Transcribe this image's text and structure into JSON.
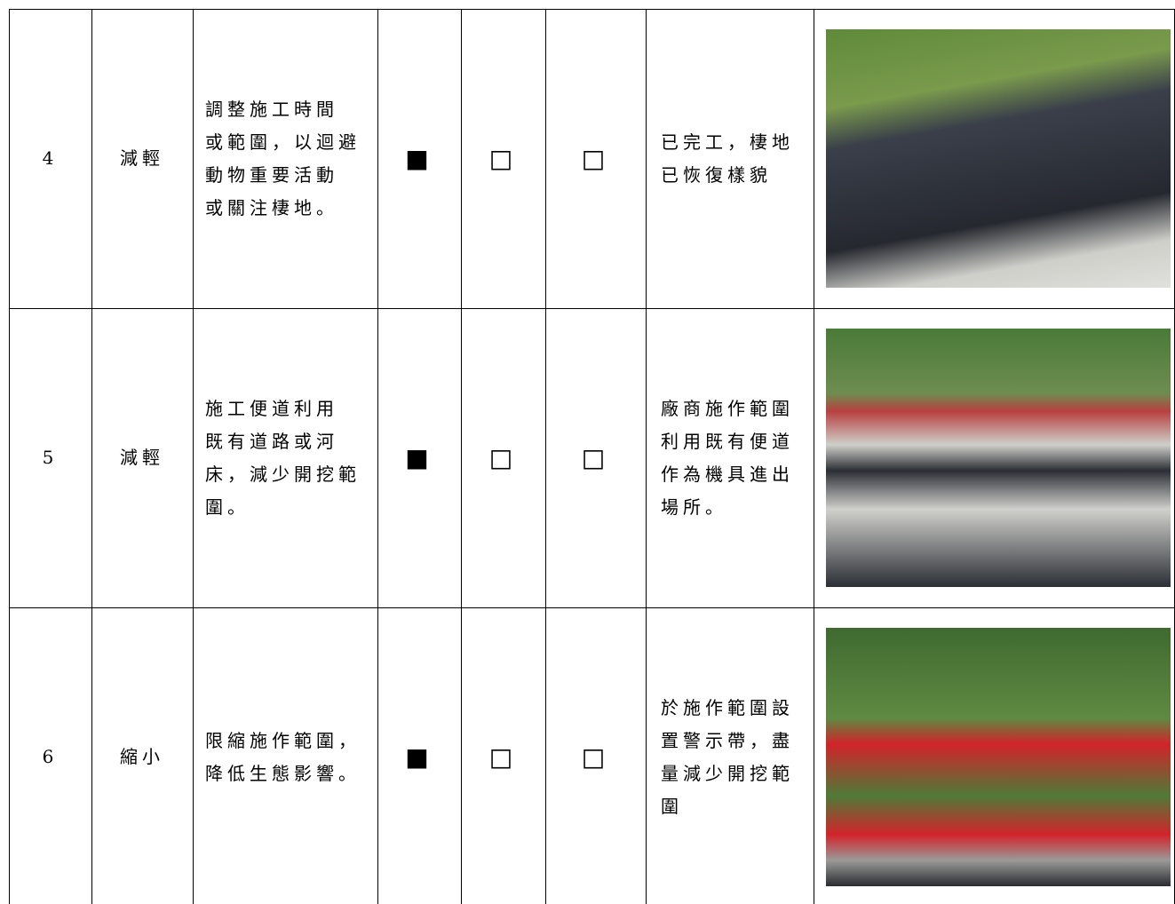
{
  "table": {
    "rows": [
      {
        "no": "4",
        "type": "減輕",
        "measure": [
          "調整施工時間",
          "或範圍，以迴避",
          "動物重要活動",
          "或關注棲地。"
        ],
        "checks": [
          "■",
          "□",
          "□"
        ],
        "result": [
          "已完工，棲地",
          "已恢復樣貌"
        ]
      },
      {
        "no": "5",
        "type": "減輕",
        "measure": [
          "施工便道利用",
          "既有道路或河",
          "床，減少開挖範",
          "圍。"
        ],
        "checks": [
          "■",
          "□",
          "□"
        ],
        "result": [
          "廠商施作範圍",
          "利用既有便道",
          "作為機具進出",
          "場所。"
        ]
      },
      {
        "no": "6",
        "type": "縮小",
        "measure": [
          "限縮施作範圍，",
          "降低生態影響。"
        ],
        "checks": [
          "■",
          "□",
          "□"
        ],
        "result": [
          "於施作範圍設",
          "置警示帶，盡",
          "量減少開挖範",
          "圍"
        ]
      }
    ]
  }
}
